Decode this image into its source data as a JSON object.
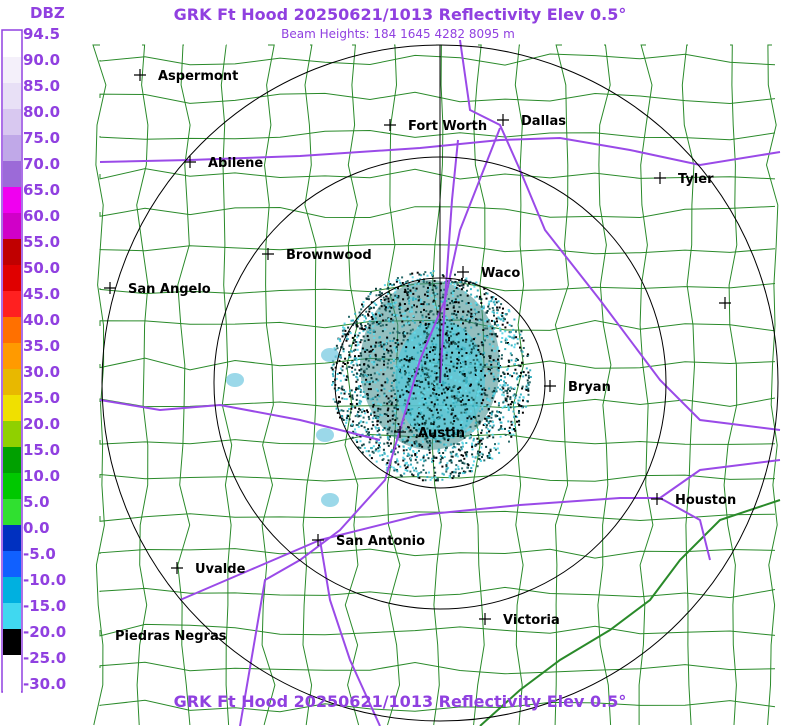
{
  "header": {
    "title": "GRK Ft Hood 20250621/1013 Reflectivity Elev 0.5°",
    "subtitle": "Beam Heights: 184 1645 4282 8095 m",
    "footer": "GRK Ft Hood 20250621/1013 Reflectivity Elev 0.5°"
  },
  "legend": {
    "unit": "DBZ",
    "labels": [
      "94.5",
      "90.0",
      "85.0",
      "80.0",
      "75.0",
      "70.0",
      "65.0",
      "60.0",
      "55.0",
      "50.0",
      "45.0",
      "40.0",
      "35.0",
      "30.0",
      "25.0",
      "20.0",
      "15.0",
      "10.0",
      "5.0",
      "0.0",
      "-5.0",
      "-10.0",
      "-15.0",
      "-20.0",
      "-25.0",
      "-30.0"
    ]
  },
  "places": [
    "Aspermont",
    "Fort Worth",
    "Dallas",
    "Abilene",
    "Tyler",
    "Brownwood",
    "Waco",
    "San Angelo",
    "Bryan",
    "Austin",
    "Houston",
    "San Antonio",
    "Uvalde",
    "Victoria",
    "Piedras Negras"
  ]
}
